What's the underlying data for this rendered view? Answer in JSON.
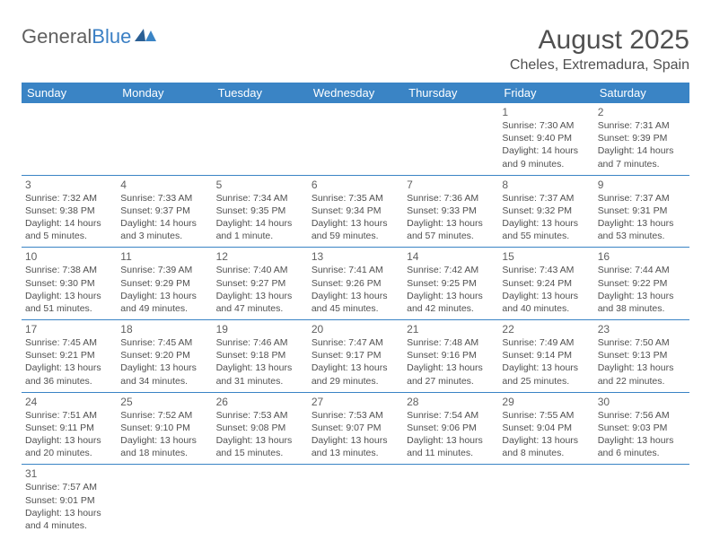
{
  "brand": {
    "general": "General",
    "blue": "Blue"
  },
  "header": {
    "title": "August 2025",
    "location": "Cheles, Extremadura, Spain"
  },
  "colors": {
    "accent": "#3a84c5",
    "text": "#505050"
  },
  "weekdays": [
    "Sunday",
    "Monday",
    "Tuesday",
    "Wednesday",
    "Thursday",
    "Friday",
    "Saturday"
  ],
  "weeks": [
    [
      null,
      null,
      null,
      null,
      null,
      {
        "n": "1",
        "sr": "Sunrise: 7:30 AM",
        "ss": "Sunset: 9:40 PM",
        "dl": "Daylight: 14 hours and 9 minutes."
      },
      {
        "n": "2",
        "sr": "Sunrise: 7:31 AM",
        "ss": "Sunset: 9:39 PM",
        "dl": "Daylight: 14 hours and 7 minutes."
      }
    ],
    [
      {
        "n": "3",
        "sr": "Sunrise: 7:32 AM",
        "ss": "Sunset: 9:38 PM",
        "dl": "Daylight: 14 hours and 5 minutes."
      },
      {
        "n": "4",
        "sr": "Sunrise: 7:33 AM",
        "ss": "Sunset: 9:37 PM",
        "dl": "Daylight: 14 hours and 3 minutes."
      },
      {
        "n": "5",
        "sr": "Sunrise: 7:34 AM",
        "ss": "Sunset: 9:35 PM",
        "dl": "Daylight: 14 hours and 1 minute."
      },
      {
        "n": "6",
        "sr": "Sunrise: 7:35 AM",
        "ss": "Sunset: 9:34 PM",
        "dl": "Daylight: 13 hours and 59 minutes."
      },
      {
        "n": "7",
        "sr": "Sunrise: 7:36 AM",
        "ss": "Sunset: 9:33 PM",
        "dl": "Daylight: 13 hours and 57 minutes."
      },
      {
        "n": "8",
        "sr": "Sunrise: 7:37 AM",
        "ss": "Sunset: 9:32 PM",
        "dl": "Daylight: 13 hours and 55 minutes."
      },
      {
        "n": "9",
        "sr": "Sunrise: 7:37 AM",
        "ss": "Sunset: 9:31 PM",
        "dl": "Daylight: 13 hours and 53 minutes."
      }
    ],
    [
      {
        "n": "10",
        "sr": "Sunrise: 7:38 AM",
        "ss": "Sunset: 9:30 PM",
        "dl": "Daylight: 13 hours and 51 minutes."
      },
      {
        "n": "11",
        "sr": "Sunrise: 7:39 AM",
        "ss": "Sunset: 9:29 PM",
        "dl": "Daylight: 13 hours and 49 minutes."
      },
      {
        "n": "12",
        "sr": "Sunrise: 7:40 AM",
        "ss": "Sunset: 9:27 PM",
        "dl": "Daylight: 13 hours and 47 minutes."
      },
      {
        "n": "13",
        "sr": "Sunrise: 7:41 AM",
        "ss": "Sunset: 9:26 PM",
        "dl": "Daylight: 13 hours and 45 minutes."
      },
      {
        "n": "14",
        "sr": "Sunrise: 7:42 AM",
        "ss": "Sunset: 9:25 PM",
        "dl": "Daylight: 13 hours and 42 minutes."
      },
      {
        "n": "15",
        "sr": "Sunrise: 7:43 AM",
        "ss": "Sunset: 9:24 PM",
        "dl": "Daylight: 13 hours and 40 minutes."
      },
      {
        "n": "16",
        "sr": "Sunrise: 7:44 AM",
        "ss": "Sunset: 9:22 PM",
        "dl": "Daylight: 13 hours and 38 minutes."
      }
    ],
    [
      {
        "n": "17",
        "sr": "Sunrise: 7:45 AM",
        "ss": "Sunset: 9:21 PM",
        "dl": "Daylight: 13 hours and 36 minutes."
      },
      {
        "n": "18",
        "sr": "Sunrise: 7:45 AM",
        "ss": "Sunset: 9:20 PM",
        "dl": "Daylight: 13 hours and 34 minutes."
      },
      {
        "n": "19",
        "sr": "Sunrise: 7:46 AM",
        "ss": "Sunset: 9:18 PM",
        "dl": "Daylight: 13 hours and 31 minutes."
      },
      {
        "n": "20",
        "sr": "Sunrise: 7:47 AM",
        "ss": "Sunset: 9:17 PM",
        "dl": "Daylight: 13 hours and 29 minutes."
      },
      {
        "n": "21",
        "sr": "Sunrise: 7:48 AM",
        "ss": "Sunset: 9:16 PM",
        "dl": "Daylight: 13 hours and 27 minutes."
      },
      {
        "n": "22",
        "sr": "Sunrise: 7:49 AM",
        "ss": "Sunset: 9:14 PM",
        "dl": "Daylight: 13 hours and 25 minutes."
      },
      {
        "n": "23",
        "sr": "Sunrise: 7:50 AM",
        "ss": "Sunset: 9:13 PM",
        "dl": "Daylight: 13 hours and 22 minutes."
      }
    ],
    [
      {
        "n": "24",
        "sr": "Sunrise: 7:51 AM",
        "ss": "Sunset: 9:11 PM",
        "dl": "Daylight: 13 hours and 20 minutes."
      },
      {
        "n": "25",
        "sr": "Sunrise: 7:52 AM",
        "ss": "Sunset: 9:10 PM",
        "dl": "Daylight: 13 hours and 18 minutes."
      },
      {
        "n": "26",
        "sr": "Sunrise: 7:53 AM",
        "ss": "Sunset: 9:08 PM",
        "dl": "Daylight: 13 hours and 15 minutes."
      },
      {
        "n": "27",
        "sr": "Sunrise: 7:53 AM",
        "ss": "Sunset: 9:07 PM",
        "dl": "Daylight: 13 hours and 13 minutes."
      },
      {
        "n": "28",
        "sr": "Sunrise: 7:54 AM",
        "ss": "Sunset: 9:06 PM",
        "dl": "Daylight: 13 hours and 11 minutes."
      },
      {
        "n": "29",
        "sr": "Sunrise: 7:55 AM",
        "ss": "Sunset: 9:04 PM",
        "dl": "Daylight: 13 hours and 8 minutes."
      },
      {
        "n": "30",
        "sr": "Sunrise: 7:56 AM",
        "ss": "Sunset: 9:03 PM",
        "dl": "Daylight: 13 hours and 6 minutes."
      }
    ],
    [
      {
        "n": "31",
        "sr": "Sunrise: 7:57 AM",
        "ss": "Sunset: 9:01 PM",
        "dl": "Daylight: 13 hours and 4 minutes."
      },
      null,
      null,
      null,
      null,
      null,
      null
    ]
  ]
}
